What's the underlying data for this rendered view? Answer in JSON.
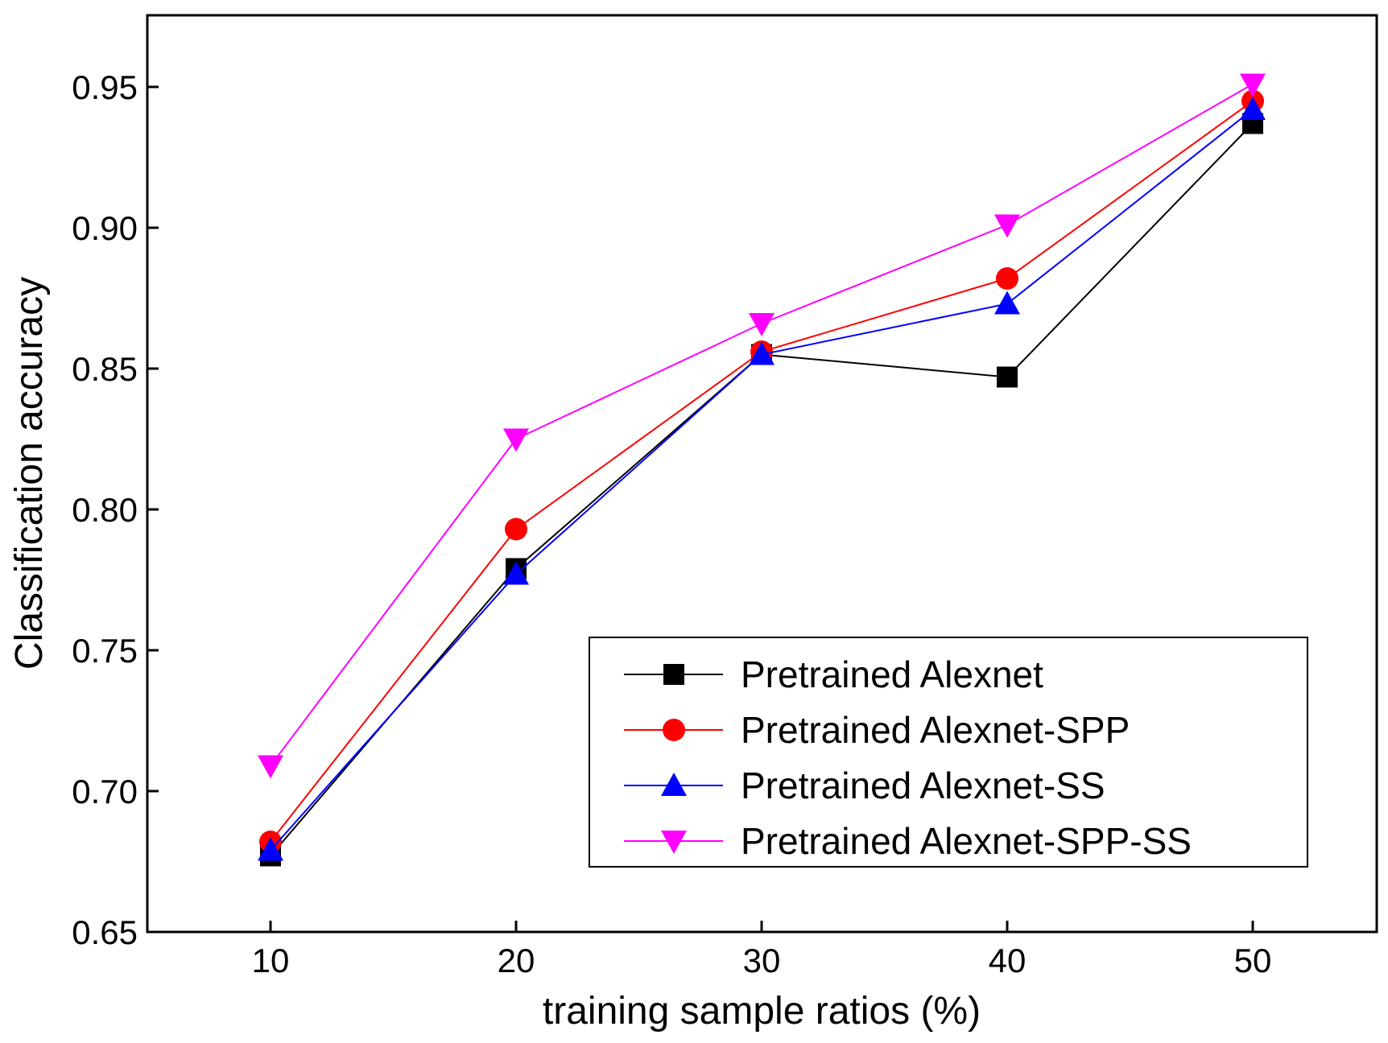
{
  "chart_data": {
    "type": "line",
    "title": "",
    "xlabel": "training sample ratios (%)",
    "ylabel": "Classification accuracy",
    "x": [
      10,
      20,
      30,
      40,
      50
    ],
    "x_ticks": [
      "10",
      "20",
      "30",
      "40",
      "50"
    ],
    "xlim": [
      5,
      55
    ],
    "ylim": [
      0.65,
      0.97
    ],
    "y_ticks": [
      "0.65",
      "0.70",
      "0.75",
      "0.80",
      "0.85",
      "0.90",
      "0.95"
    ],
    "grid": false,
    "legend_position": "bottom-right",
    "series": [
      {
        "name": "Pretrained Alexnet",
        "color": "#000000",
        "marker": "square",
        "values": [
          0.677,
          0.779,
          0.855,
          0.847,
          0.937
        ]
      },
      {
        "name": "Pretrained Alexnet-SPP",
        "color": "#ff0000",
        "marker": "circle",
        "values": [
          0.682,
          0.793,
          0.856,
          0.882,
          0.945
        ]
      },
      {
        "name": "Pretrained Alexnet-SS",
        "color": "#0000ff",
        "marker": "triangle-up",
        "values": [
          0.679,
          0.777,
          0.855,
          0.873,
          0.942
        ]
      },
      {
        "name": "Pretrained Alexnet-SPP-SS",
        "color": "#ff00ff",
        "marker": "triangle-down",
        "values": [
          0.709,
          0.825,
          0.866,
          0.901,
          0.951
        ]
      }
    ]
  }
}
